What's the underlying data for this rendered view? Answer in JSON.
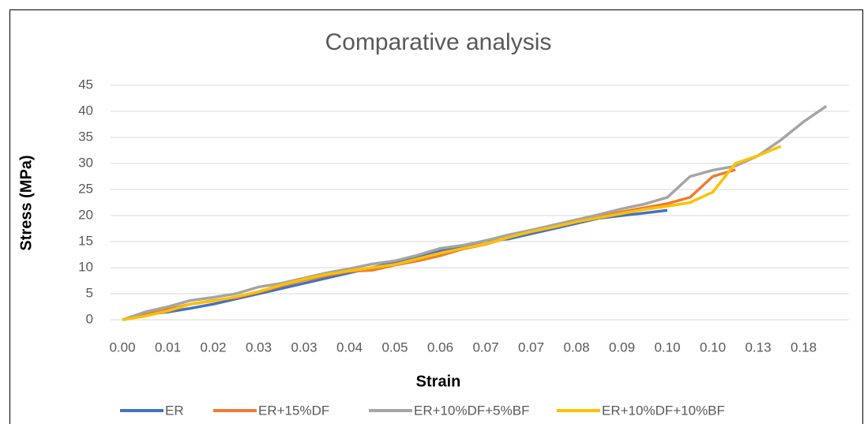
{
  "chart_data": {
    "type": "line",
    "title": "Comparative analysis",
    "x_label": "Strain",
    "y_label": "Stress (MPa)",
    "categories": [
      "0.00",
      null,
      "0.01",
      null,
      "0.02",
      null,
      "0.03",
      null,
      "0.03",
      null,
      "0.04",
      null,
      "0.05",
      null,
      "0.06",
      null,
      "0.07",
      null,
      "0.07",
      null,
      "0.08",
      null,
      "0.09",
      null,
      "0.10",
      null,
      "0.10",
      null,
      "0.13",
      null,
      "0.18",
      null
    ],
    "ylim": [
      0,
      45
    ],
    "yticks": [
      0,
      5,
      10,
      15,
      20,
      25,
      30,
      35,
      40,
      45
    ],
    "grid": true,
    "legend": "bottom",
    "series": [
      {
        "name": "ER",
        "color": "#4472c4",
        "values": [
          0,
          1,
          1.5,
          2.2,
          3,
          4,
          5,
          6,
          7,
          8,
          9,
          10,
          11,
          12,
          13.2,
          14,
          15.2,
          15.5,
          16.5,
          17.5,
          18.5,
          19.5,
          20,
          20.5,
          21,
          null,
          null,
          null,
          null,
          null,
          null,
          null
        ]
      },
      {
        "name": "ER+15%DF",
        "color": "#ed7d31",
        "values": [
          0,
          1,
          2,
          3,
          3.7,
          4.3,
          5.3,
          6.5,
          7.6,
          8.5,
          9.3,
          9.5,
          10.5,
          11.3,
          12.3,
          13.6,
          14.5,
          15.8,
          17,
          18,
          19,
          19.8,
          20.7,
          21.5,
          22.3,
          23.5,
          27.5,
          28.8,
          null,
          null,
          null,
          null
        ]
      },
      {
        "name": "ER+10%DF+5%BF",
        "color": "#a5a5a5",
        "values": [
          0,
          1.5,
          2.5,
          3.7,
          4.3,
          5,
          6.3,
          7,
          8,
          9,
          9.8,
          10.7,
          11.3,
          12.4,
          13.7,
          14.3,
          15.2,
          16.3,
          17.2,
          18.2,
          19.2,
          20.2,
          21.3,
          22.2,
          23.5,
          27.5,
          28.7,
          29.5,
          31.5,
          34.5,
          38,
          41
        ]
      },
      {
        "name": "ER+10%DF+10%BF",
        "color": "#ffc000",
        "values": [
          0,
          0.7,
          1.7,
          3,
          3.6,
          4.4,
          5.4,
          6.7,
          7.8,
          8.7,
          9.4,
          10,
          10.6,
          11.7,
          12.8,
          13.7,
          14.6,
          15.8,
          16.9,
          17.8,
          18.8,
          19.6,
          20.4,
          21.2,
          21.8,
          22.5,
          24.5,
          30,
          31.5,
          33.3,
          null,
          null
        ]
      }
    ]
  }
}
